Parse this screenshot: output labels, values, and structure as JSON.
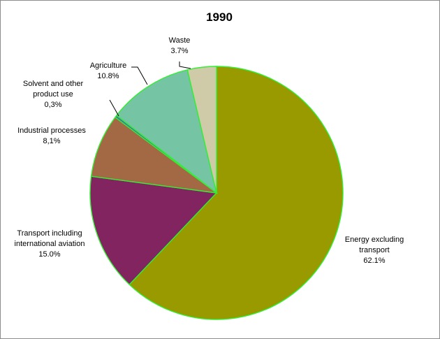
{
  "chart_data": {
    "type": "pie",
    "title": "1990",
    "colors": {
      "energy": "#999900",
      "transport": "#82245f",
      "industrial": "#a36945",
      "solvent": "#4477aa",
      "agriculture": "#75c4a3",
      "waste": "#cfcaa8",
      "slice_border": "#33ee33"
    },
    "slices": [
      {
        "key": "energy",
        "label_lines": [
          "Energy excluding",
          "transport"
        ],
        "value_label": "62.1%",
        "value": 62.1
      },
      {
        "key": "transport",
        "label_lines": [
          "Transport including",
          "international aviation"
        ],
        "value_label": "15.0%",
        "value": 15.0
      },
      {
        "key": "industrial",
        "label_lines": [
          "Industrial processes"
        ],
        "value_label": "8,1%",
        "value": 8.1
      },
      {
        "key": "solvent",
        "label_lines": [
          "Solvent and other",
          "product use"
        ],
        "value_label": "0,3%",
        "value": 0.3
      },
      {
        "key": "agriculture",
        "label_lines": [
          "Agriculture"
        ],
        "value_label": "10.8%",
        "value": 10.8
      },
      {
        "key": "waste",
        "label_lines": [
          "Waste"
        ],
        "value_label": "3.7%",
        "value": 3.7
      }
    ]
  }
}
